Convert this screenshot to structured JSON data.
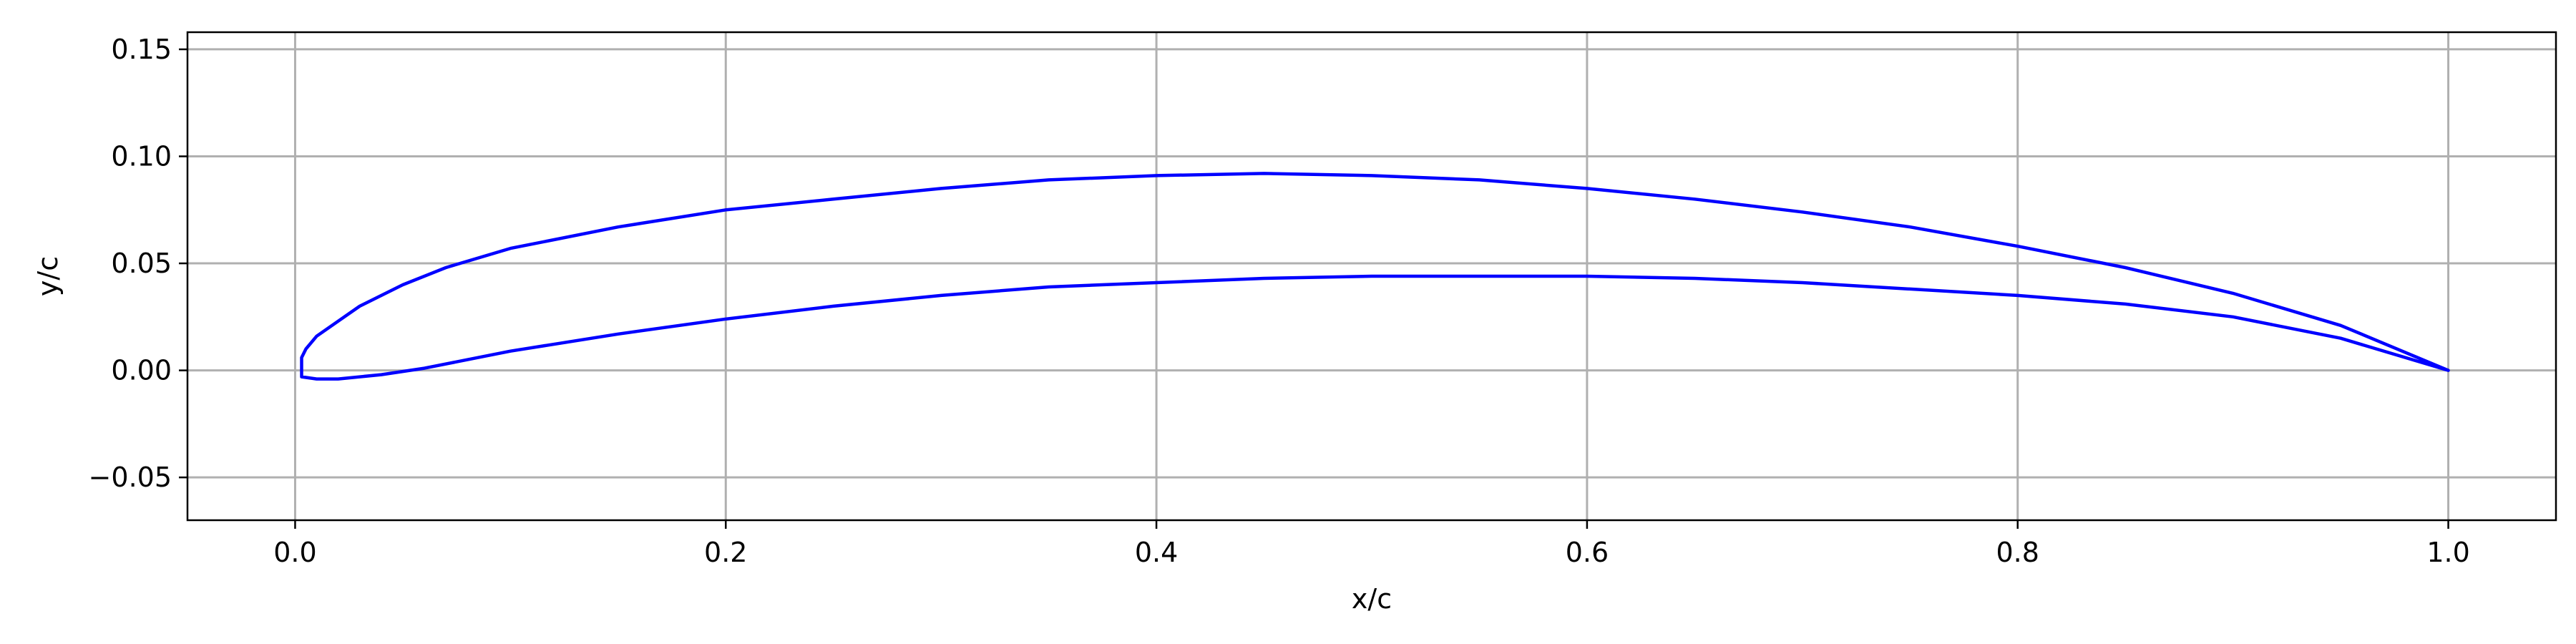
{
  "chart_data": {
    "type": "line",
    "title": "",
    "xlabel": "x/c",
    "ylabel": "y/c",
    "xlim": [
      -0.05,
      1.05
    ],
    "ylim": [
      -0.07,
      0.158
    ],
    "xticks": [
      0.0,
      0.2,
      0.4,
      0.6,
      0.8,
      1.0
    ],
    "xtick_labels": [
      "0.0",
      "0.2",
      "0.4",
      "0.6",
      "0.8",
      "1.0"
    ],
    "yticks": [
      -0.05,
      0.0,
      0.05,
      0.1,
      0.15
    ],
    "ytick_labels": [
      "−0.05",
      "0.00",
      "0.05",
      "0.10",
      "0.15"
    ],
    "grid": true,
    "series": [
      {
        "color": "#0000ff",
        "x": [
          1.0,
          0.95,
          0.9,
          0.85,
          0.8,
          0.75,
          0.7,
          0.65,
          0.6,
          0.55,
          0.5,
          0.45,
          0.4,
          0.35,
          0.3,
          0.25,
          0.2,
          0.15,
          0.1,
          0.07,
          0.05,
          0.03,
          0.02,
          0.01,
          0.005,
          0.003,
          0.003,
          0.01,
          0.02,
          0.04,
          0.06,
          0.1,
          0.15,
          0.2,
          0.25,
          0.3,
          0.35,
          0.4,
          0.45,
          0.5,
          0.55,
          0.6,
          0.65,
          0.7,
          0.75,
          0.8,
          0.85,
          0.9,
          0.95,
          1.0
        ],
        "y": [
          0.0,
          0.021,
          0.036,
          0.048,
          0.058,
          0.067,
          0.074,
          0.08,
          0.085,
          0.089,
          0.091,
          0.092,
          0.091,
          0.089,
          0.085,
          0.08,
          0.075,
          0.067,
          0.057,
          0.048,
          0.04,
          0.03,
          0.023,
          0.016,
          0.01,
          0.006,
          -0.003,
          -0.004,
          -0.004,
          -0.002,
          0.001,
          0.009,
          0.017,
          0.024,
          0.03,
          0.035,
          0.039,
          0.041,
          0.043,
          0.044,
          0.044,
          0.044,
          0.043,
          0.041,
          0.038,
          0.035,
          0.031,
          0.025,
          0.015,
          0.0
        ]
      }
    ]
  }
}
